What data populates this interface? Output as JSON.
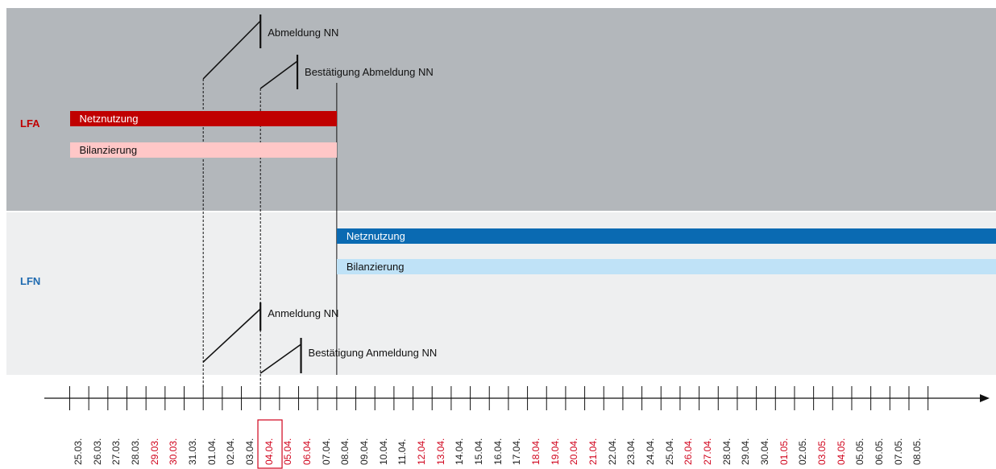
{
  "colors": {
    "lfa_band": "#b3b7bb",
    "lfn_band": "#eeeff0",
    "lfa_label": "#c00000",
    "lfn_label": "#1f6ab0",
    "lfa_netznutzung": "#c00000",
    "lfa_bilanzierung": "#ffc7c7",
    "lfn_netznutzung": "#0a6ab2",
    "lfn_bilanzierung": "#bfe2f7",
    "weekday": "#222222",
    "weekend": "#d0021b",
    "highlight_box": "#d0021b",
    "lines": "#111111"
  },
  "bands": {
    "lfa": {
      "label": "LFA"
    },
    "lfn": {
      "label": "LFN"
    }
  },
  "bars": {
    "lfa_netznutzung": {
      "label": "Netznutzung",
      "start": "25.03.",
      "end": "08.04."
    },
    "lfa_bilanzierung": {
      "label": "Bilanzierung",
      "start": "25.03.",
      "end": "08.04."
    },
    "lfn_netznutzung": {
      "label": "Netznutzung",
      "start": "08.04.",
      "end": "08.05."
    },
    "lfn_bilanzierung": {
      "label": "Bilanzierung",
      "start": "08.04.",
      "end": "08.05."
    }
  },
  "milestones": {
    "abmeldung": {
      "label": "Abmeldung NN",
      "start": "01.04.",
      "end": "04.04."
    },
    "bestaetigung_abmeldung": {
      "label": "Bestätigung Abmeldung NN",
      "start": "04.04.",
      "end": "06.04."
    },
    "anmeldung": {
      "label": "Anmeldung NN",
      "start": "01.04.",
      "end": "04.04."
    },
    "bestaetigung_anmeldung": {
      "label": "Bestätigung Anmeldung NN",
      "start": "04.04.",
      "end": "06.04."
    }
  },
  "switch_date": "08.04.",
  "highlighted_date": "04.04.",
  "dates": [
    {
      "label": "25.03.",
      "weekend": false
    },
    {
      "label": "26.03.",
      "weekend": false
    },
    {
      "label": "27.03.",
      "weekend": false
    },
    {
      "label": "28.03.",
      "weekend": false
    },
    {
      "label": "29.03.",
      "weekend": true
    },
    {
      "label": "30.03.",
      "weekend": true
    },
    {
      "label": "31.03.",
      "weekend": false
    },
    {
      "label": "01.04.",
      "weekend": false
    },
    {
      "label": "02.04.",
      "weekend": false
    },
    {
      "label": "03.04.",
      "weekend": false
    },
    {
      "label": "04.04.",
      "weekend": true
    },
    {
      "label": "05.04.",
      "weekend": true
    },
    {
      "label": "06.04.",
      "weekend": true
    },
    {
      "label": "07.04.",
      "weekend": false
    },
    {
      "label": "08.04.",
      "weekend": false
    },
    {
      "label": "09.04.",
      "weekend": false
    },
    {
      "label": "10.04.",
      "weekend": false
    },
    {
      "label": "11.04.",
      "weekend": false
    },
    {
      "label": "12.04.",
      "weekend": true
    },
    {
      "label": "13.04.",
      "weekend": true
    },
    {
      "label": "14.04.",
      "weekend": false
    },
    {
      "label": "15.04.",
      "weekend": false
    },
    {
      "label": "16.04.",
      "weekend": false
    },
    {
      "label": "17.04.",
      "weekend": false
    },
    {
      "label": "18.04.",
      "weekend": true
    },
    {
      "label": "19.04.",
      "weekend": true
    },
    {
      "label": "20.04.",
      "weekend": true
    },
    {
      "label": "21.04.",
      "weekend": true
    },
    {
      "label": "22.04.",
      "weekend": false
    },
    {
      "label": "23.04.",
      "weekend": false
    },
    {
      "label": "24.04.",
      "weekend": false
    },
    {
      "label": "25.04.",
      "weekend": false
    },
    {
      "label": "26.04.",
      "weekend": true
    },
    {
      "label": "27.04.",
      "weekend": true
    },
    {
      "label": "28.04.",
      "weekend": false
    },
    {
      "label": "29.04.",
      "weekend": false
    },
    {
      "label": "30.04.",
      "weekend": false
    },
    {
      "label": "01.05.",
      "weekend": true
    },
    {
      "label": "02.05.",
      "weekend": false
    },
    {
      "label": "03.05.",
      "weekend": true
    },
    {
      "label": "04.05.",
      "weekend": true
    },
    {
      "label": "05.05.",
      "weekend": false
    },
    {
      "label": "06.05.",
      "weekend": false
    },
    {
      "label": "07.05.",
      "weekend": false
    },
    {
      "label": "08.05.",
      "weekend": false
    }
  ]
}
